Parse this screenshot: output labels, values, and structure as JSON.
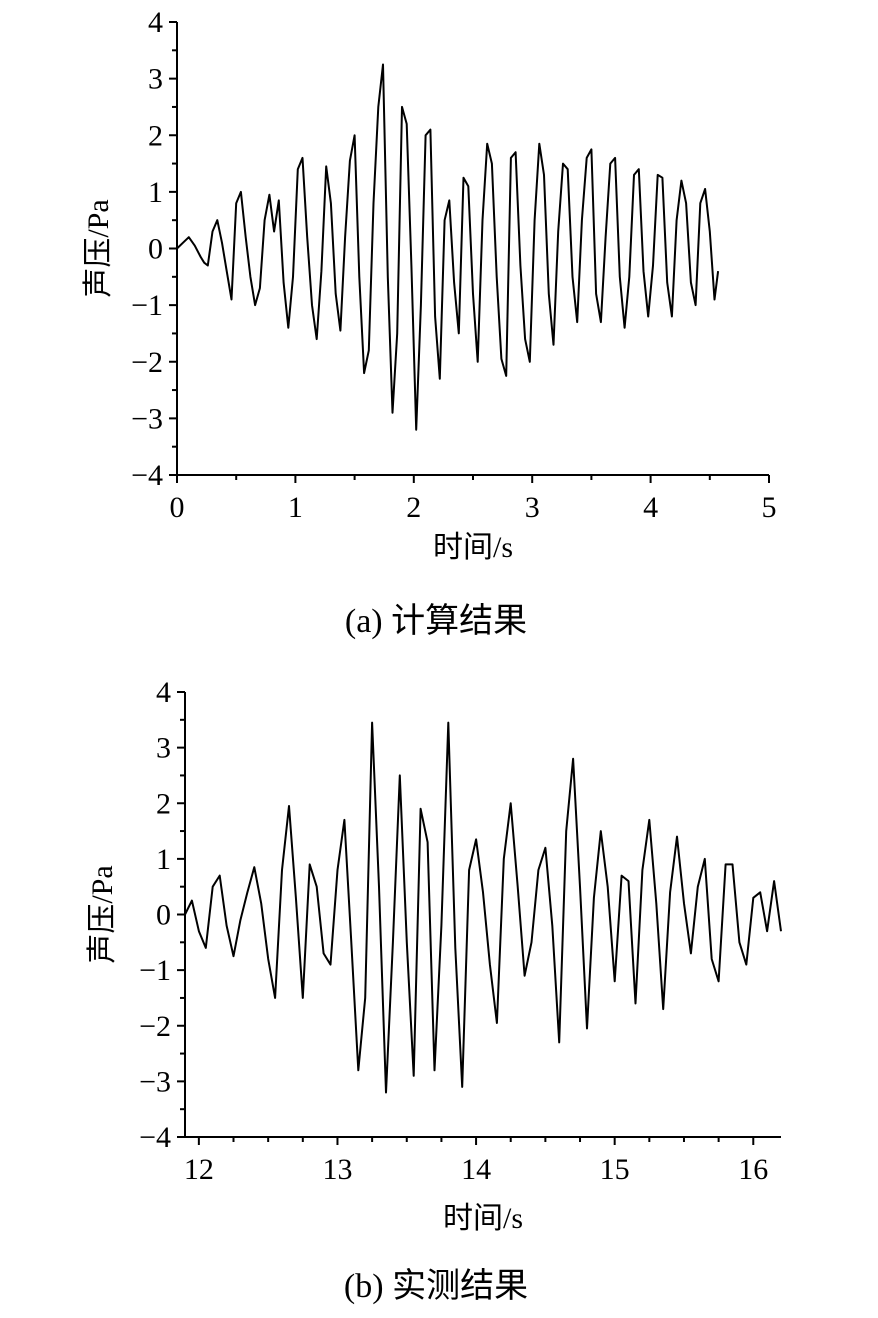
{
  "chart_data": [
    {
      "type": "line",
      "caption": "(a) 计算结果",
      "xlabel": "时间/s",
      "ylabel": "声压/Pa",
      "xlim": [
        0,
        5
      ],
      "ylim": [
        -4,
        4
      ],
      "x_ticks": [
        0,
        1,
        2,
        3,
        4,
        5
      ],
      "y_ticks": [
        4,
        3,
        2,
        1,
        0,
        -1,
        -2,
        -3,
        -4
      ],
      "x_tick_labels": [
        "0",
        "1",
        "2",
        "3",
        "4",
        "5"
      ],
      "y_tick_labels": [
        "4",
        "3",
        "2",
        "1",
        "0",
        "−1",
        "−2",
        "−3",
        "−4"
      ],
      "grid": false,
      "series": [
        {
          "x": [
            0,
            0.05,
            0.1,
            0.15,
            0.2,
            0.23,
            0.26,
            0.3,
            0.34,
            0.38,
            0.42,
            0.46,
            0.5,
            0.54,
            0.58,
            0.62,
            0.66,
            0.7,
            0.74,
            0.78,
            0.82,
            0.86,
            0.9,
            0.94,
            0.98,
            1.02,
            1.06,
            1.1,
            1.14,
            1.18,
            1.22,
            1.26,
            1.3,
            1.34,
            1.38,
            1.42,
            1.46,
            1.5,
            1.54,
            1.58,
            1.62,
            1.66,
            1.7,
            1.74,
            1.78,
            1.82,
            1.86,
            1.9,
            1.94,
            1.98,
            2.02,
            2.06,
            2.1,
            2.14,
            2.18,
            2.22,
            2.26,
            2.3,
            2.34,
            2.38,
            2.42,
            2.46,
            2.5,
            2.54,
            2.58,
            2.62,
            2.66,
            2.7,
            2.74,
            2.78,
            2.82,
            2.86,
            2.9,
            2.94,
            2.98,
            3.02,
            3.06,
            3.1,
            3.14,
            3.18,
            3.22,
            3.26,
            3.3,
            3.34,
            3.38,
            3.42,
            3.46,
            3.5,
            3.54,
            3.58,
            3.62,
            3.66,
            3.7,
            3.74,
            3.78,
            3.82,
            3.86,
            3.9,
            3.94,
            3.98,
            4.02,
            4.06,
            4.1,
            4.14,
            4.18,
            4.22,
            4.26,
            4.3,
            4.34,
            4.38,
            4.42,
            4.46,
            4.5,
            4.54,
            4.57
          ],
          "values": [
            0,
            0.1,
            0.2,
            0.05,
            -0.15,
            -0.25,
            -0.3,
            0.3,
            0.5,
            0.1,
            -0.4,
            -0.9,
            0.8,
            1.0,
            0.2,
            -0.5,
            -1.0,
            -0.7,
            0.5,
            0.95,
            0.3,
            0.85,
            -0.6,
            -1.4,
            -0.5,
            1.4,
            1.6,
            0.2,
            -1.0,
            -1.6,
            -0.4,
            1.45,
            0.8,
            -0.8,
            -1.45,
            0.2,
            1.55,
            2.0,
            -0.5,
            -2.2,
            -1.8,
            0.8,
            2.5,
            3.25,
            -0.5,
            -2.9,
            -1.5,
            2.5,
            2.2,
            -0.3,
            -3.2,
            -1.0,
            2.0,
            2.1,
            -1.2,
            -2.3,
            0.5,
            0.85,
            -0.6,
            -1.5,
            1.25,
            1.1,
            -0.8,
            -2.0,
            0.5,
            1.85,
            1.5,
            -0.5,
            -1.95,
            -2.25,
            1.6,
            1.7,
            -0.3,
            -1.6,
            -2.0,
            0.5,
            1.85,
            1.3,
            -0.8,
            -1.7,
            0.3,
            1.5,
            1.4,
            -0.5,
            -1.3,
            0.5,
            1.6,
            1.75,
            -0.8,
            -1.3,
            0.2,
            1.5,
            1.6,
            -0.5,
            -1.4,
            -0.5,
            1.3,
            1.4,
            -0.4,
            -1.2,
            -0.3,
            1.3,
            1.25,
            -0.6,
            -1.2,
            0.5,
            1.2,
            0.8,
            -0.6,
            -1.0,
            0.8,
            1.05,
            0.3,
            -0.9,
            -0.4
          ]
        }
      ]
    },
    {
      "type": "line",
      "caption": "(b) 实测结果",
      "xlabel": "时间/s",
      "ylabel": "声压/Pa",
      "xlim": [
        11.9,
        16.2
      ],
      "ylim": [
        -4,
        4
      ],
      "x_ticks": [
        12,
        13,
        14,
        15,
        16
      ],
      "y_ticks": [
        4,
        3,
        2,
        1,
        0,
        -1,
        -2,
        -3,
        -4
      ],
      "x_tick_labels": [
        "12",
        "13",
        "14",
        "15",
        "16"
      ],
      "y_tick_labels": [
        "4",
        "3",
        "2",
        "1",
        "0",
        "−1",
        "−2",
        "−3",
        "−4"
      ],
      "grid": false,
      "series": [
        {
          "x": [
            11.9,
            11.95,
            12.0,
            12.05,
            12.1,
            12.15,
            12.2,
            12.25,
            12.3,
            12.35,
            12.4,
            12.45,
            12.5,
            12.55,
            12.6,
            12.65,
            12.7,
            12.75,
            12.8,
            12.85,
            12.9,
            12.95,
            13.0,
            13.05,
            13.1,
            13.15,
            13.2,
            13.25,
            13.3,
            13.35,
            13.4,
            13.45,
            13.5,
            13.55,
            13.6,
            13.65,
            13.7,
            13.75,
            13.8,
            13.85,
            13.9,
            13.95,
            14.0,
            14.05,
            14.1,
            14.15,
            14.2,
            14.25,
            14.3,
            14.35,
            14.4,
            14.45,
            14.5,
            14.55,
            14.6,
            14.65,
            14.7,
            14.75,
            14.8,
            14.85,
            14.9,
            14.95,
            15.0,
            15.05,
            15.1,
            15.15,
            15.2,
            15.25,
            15.3,
            15.35,
            15.4,
            15.45,
            15.5,
            15.55,
            15.6,
            15.65,
            15.7,
            15.75,
            15.8,
            15.85,
            15.9,
            15.95,
            16.0,
            16.05,
            16.1,
            16.15,
            16.2
          ],
          "values": [
            0.0,
            0.25,
            -0.3,
            -0.6,
            0.5,
            0.7,
            -0.2,
            -0.75,
            -0.1,
            0.4,
            0.85,
            0.2,
            -0.8,
            -1.5,
            0.8,
            1.95,
            0.3,
            -1.5,
            0.9,
            0.5,
            -0.7,
            -0.9,
            0.8,
            1.7,
            -0.5,
            -2.8,
            -1.5,
            3.45,
            0.5,
            -3.2,
            -0.5,
            2.5,
            -0.5,
            -2.9,
            1.9,
            1.3,
            -2.8,
            -0.2,
            3.45,
            -0.6,
            -3.1,
            0.8,
            1.35,
            0.4,
            -0.9,
            -1.95,
            1.0,
            2.0,
            0.5,
            -1.1,
            -0.5,
            0.8,
            1.2,
            -0.2,
            -2.3,
            1.5,
            2.8,
            0.5,
            -2.05,
            0.3,
            1.5,
            0.5,
            -1.2,
            0.7,
            0.6,
            -1.6,
            0.8,
            1.7,
            0.2,
            -1.7,
            0.4,
            1.4,
            0.2,
            -0.7,
            0.5,
            1.0,
            -0.8,
            -1.2,
            0.9,
            0.9,
            -0.5,
            -0.9,
            0.3,
            0.4,
            -0.3,
            0.6,
            -0.3
          ]
        }
      ]
    }
  ]
}
